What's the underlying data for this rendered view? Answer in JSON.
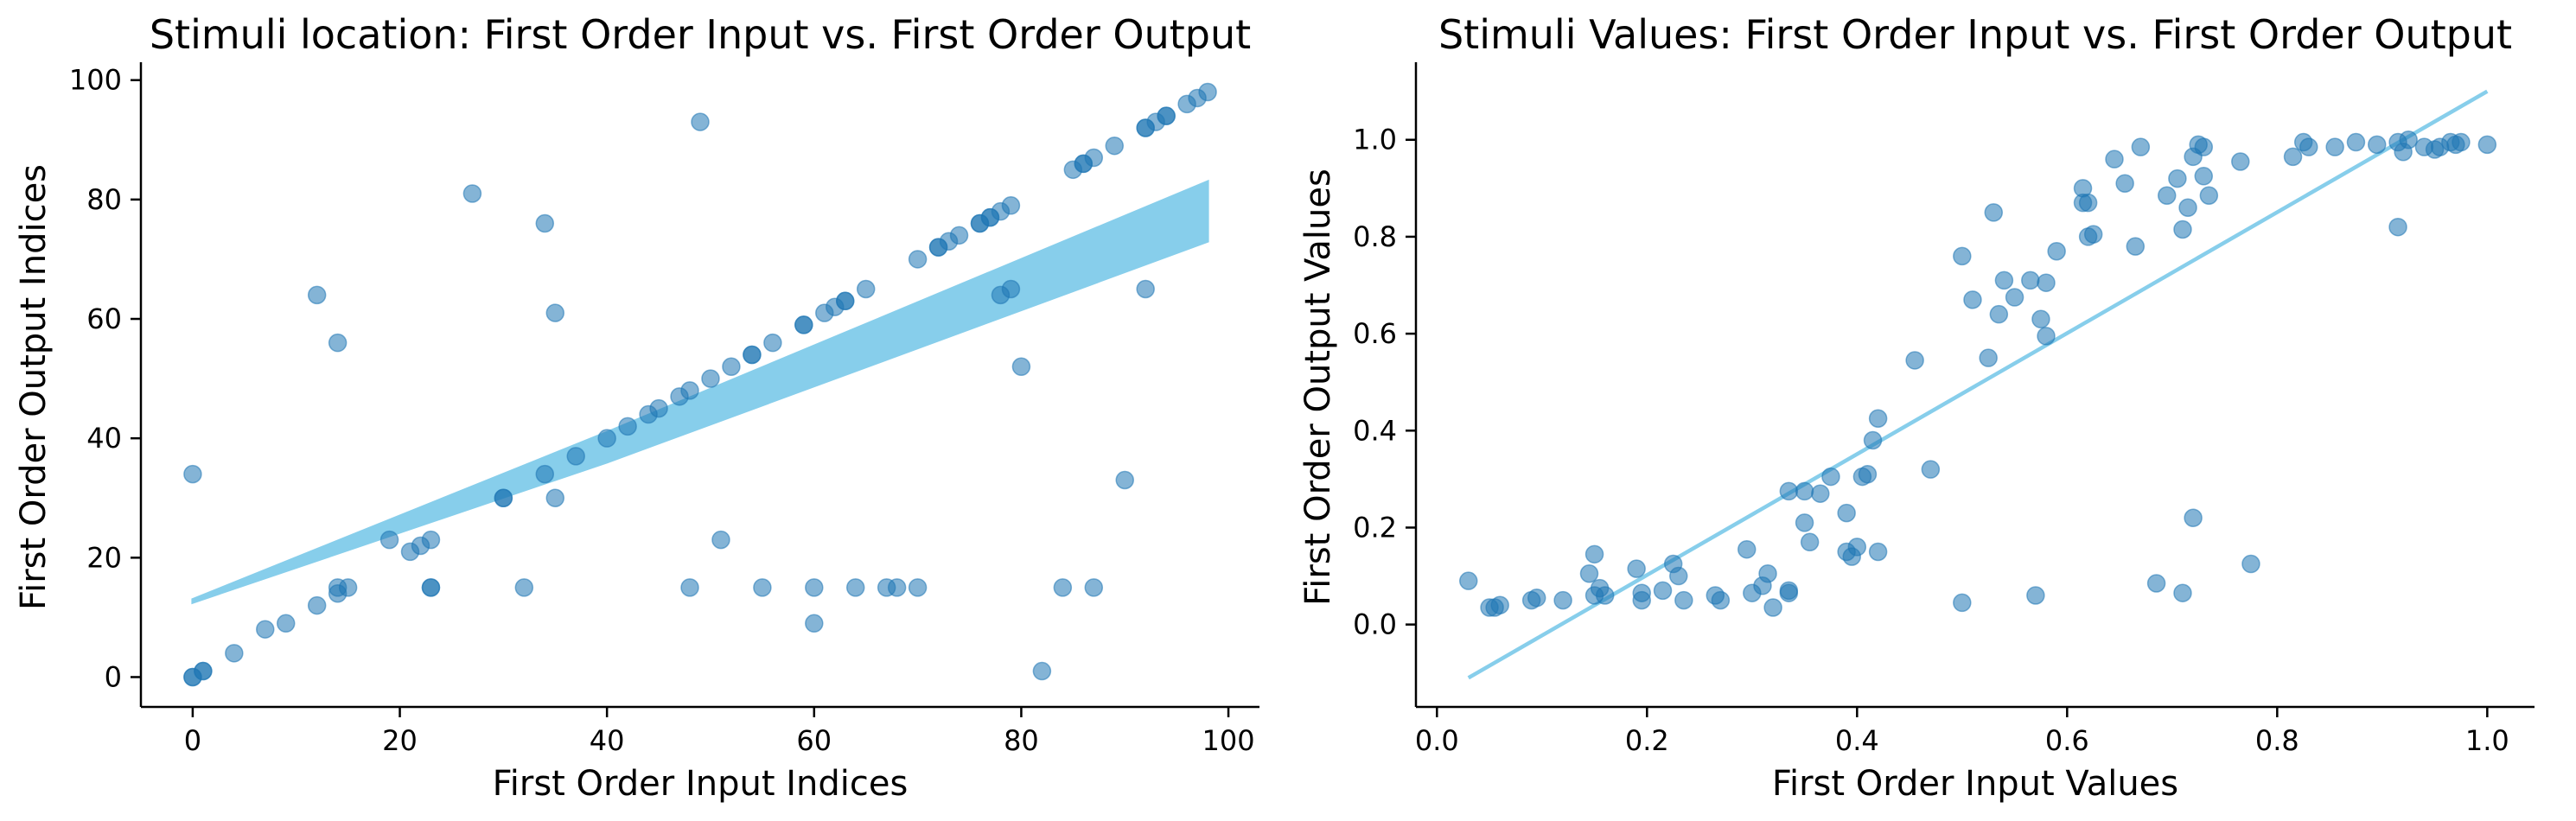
{
  "chart_data": [
    {
      "type": "scatter",
      "title": "Stimuli location: First Order Input vs. First Order Output",
      "xlabel": "First Order Input Indices",
      "ylabel": "First Order Output Indices",
      "xlim": [
        -5,
        103
      ],
      "ylim": [
        -5,
        103
      ],
      "xticks": [
        0,
        20,
        40,
        60,
        80,
        100
      ],
      "yticks": [
        0,
        20,
        40,
        60,
        80,
        100
      ],
      "grid": false,
      "point_color": "#1f77b4",
      "fit_color": "#87ceeb",
      "points": [
        [
          0,
          0
        ],
        [
          0,
          0
        ],
        [
          1,
          1
        ],
        [
          1,
          1
        ],
        [
          0,
          34
        ],
        [
          4,
          4
        ],
        [
          7,
          8
        ],
        [
          9,
          9
        ],
        [
          12,
          12
        ],
        [
          14,
          14
        ],
        [
          14,
          15
        ],
        [
          15,
          15
        ],
        [
          12,
          64
        ],
        [
          14,
          56
        ],
        [
          19,
          23
        ],
        [
          21,
          21
        ],
        [
          22,
          22
        ],
        [
          23,
          23
        ],
        [
          23,
          15
        ],
        [
          23,
          15
        ],
        [
          27,
          81
        ],
        [
          30,
          30
        ],
        [
          30,
          30
        ],
        [
          32,
          15
        ],
        [
          34,
          76
        ],
        [
          35,
          61
        ],
        [
          35,
          30
        ],
        [
          34,
          34
        ],
        [
          37,
          37
        ],
        [
          40,
          40
        ],
        [
          42,
          42
        ],
        [
          44,
          44
        ],
        [
          45,
          45
        ],
        [
          47,
          47
        ],
        [
          48,
          48
        ],
        [
          48,
          15
        ],
        [
          49,
          93
        ],
        [
          50,
          50
        ],
        [
          51,
          23
        ],
        [
          52,
          52
        ],
        [
          54,
          54
        ],
        [
          54,
          54
        ],
        [
          55,
          15
        ],
        [
          56,
          56
        ],
        [
          59,
          59
        ],
        [
          59,
          59
        ],
        [
          60,
          15
        ],
        [
          60,
          9
        ],
        [
          61,
          61
        ],
        [
          62,
          62
        ],
        [
          63,
          63
        ],
        [
          63,
          63
        ],
        [
          64,
          15
        ],
        [
          65,
          65
        ],
        [
          67,
          15
        ],
        [
          68,
          15
        ],
        [
          70,
          70
        ],
        [
          70,
          15
        ],
        [
          72,
          72
        ],
        [
          72,
          72
        ],
        [
          73,
          73
        ],
        [
          74,
          74
        ],
        [
          76,
          76
        ],
        [
          76,
          76
        ],
        [
          77,
          77
        ],
        [
          77,
          77
        ],
        [
          78,
          78
        ],
        [
          78,
          64
        ],
        [
          79,
          79
        ],
        [
          79,
          65
        ],
        [
          80,
          52
        ],
        [
          82,
          1
        ],
        [
          84,
          15
        ],
        [
          85,
          85
        ],
        [
          86,
          86
        ],
        [
          86,
          86
        ],
        [
          87,
          15
        ],
        [
          87,
          87
        ],
        [
          89,
          89
        ],
        [
          90,
          33
        ],
        [
          92,
          92
        ],
        [
          92,
          92
        ],
        [
          92,
          65
        ],
        [
          93,
          93
        ],
        [
          94,
          94
        ],
        [
          94,
          94
        ],
        [
          96,
          96
        ],
        [
          97,
          97
        ],
        [
          98,
          98
        ]
      ],
      "fit_band": [
        [
          0,
          12.5,
          13
        ],
        [
          40,
          36,
          41
        ],
        [
          98,
          73,
          83
        ]
      ]
    },
    {
      "type": "scatter",
      "title": "Stimuli Values: First Order Input vs. First Order Output",
      "xlabel": "First Order Input Values",
      "ylabel": "First Order Output Values",
      "xlim": [
        -0.02,
        1.045
      ],
      "ylim": [
        -0.17,
        1.16
      ],
      "xticks": [
        0.0,
        0.2,
        0.4,
        0.6,
        0.8,
        1.0
      ],
      "xtick_labels": [
        "0.0",
        "0.2",
        "0.4",
        "0.6",
        "0.8",
        "1.0"
      ],
      "yticks": [
        0.0,
        0.2,
        0.4,
        0.6,
        0.8,
        1.0
      ],
      "ytick_labels": [
        "0.0",
        "0.2",
        "0.4",
        "0.6",
        "0.8",
        "1.0"
      ],
      "grid": false,
      "point_color": "#1f77b4",
      "fit_color": "#87ceeb",
      "fit_line": [
        [
          0.03,
          -0.11
        ],
        [
          1.0,
          1.1
        ]
      ],
      "points": [
        [
          0.03,
          0.09
        ],
        [
          0.05,
          0.035
        ],
        [
          0.055,
          0.035
        ],
        [
          0.06,
          0.04
        ],
        [
          0.09,
          0.05
        ],
        [
          0.095,
          0.055
        ],
        [
          0.12,
          0.05
        ],
        [
          0.145,
          0.105
        ],
        [
          0.15,
          0.06
        ],
        [
          0.15,
          0.145
        ],
        [
          0.155,
          0.075
        ],
        [
          0.16,
          0.06
        ],
        [
          0.19,
          0.115
        ],
        [
          0.195,
          0.05
        ],
        [
          0.195,
          0.065
        ],
        [
          0.215,
          0.07
        ],
        [
          0.225,
          0.125
        ],
        [
          0.23,
          0.1
        ],
        [
          0.235,
          0.05
        ],
        [
          0.265,
          0.06
        ],
        [
          0.27,
          0.05
        ],
        [
          0.295,
          0.155
        ],
        [
          0.3,
          0.065
        ],
        [
          0.31,
          0.08
        ],
        [
          0.315,
          0.105
        ],
        [
          0.32,
          0.035
        ],
        [
          0.335,
          0.065
        ],
        [
          0.335,
          0.07
        ],
        [
          0.335,
          0.275
        ],
        [
          0.35,
          0.275
        ],
        [
          0.35,
          0.21
        ],
        [
          0.355,
          0.17
        ],
        [
          0.365,
          0.27
        ],
        [
          0.375,
          0.305
        ],
        [
          0.39,
          0.23
        ],
        [
          0.39,
          0.15
        ],
        [
          0.395,
          0.14
        ],
        [
          0.4,
          0.16
        ],
        [
          0.405,
          0.305
        ],
        [
          0.41,
          0.31
        ],
        [
          0.415,
          0.38
        ],
        [
          0.42,
          0.425
        ],
        [
          0.42,
          0.15
        ],
        [
          0.455,
          0.545
        ],
        [
          0.47,
          0.32
        ],
        [
          0.5,
          0.76
        ],
        [
          0.5,
          0.045
        ],
        [
          0.51,
          0.67
        ],
        [
          0.525,
          0.55
        ],
        [
          0.53,
          0.85
        ],
        [
          0.535,
          0.64
        ],
        [
          0.54,
          0.71
        ],
        [
          0.55,
          0.675
        ],
        [
          0.565,
          0.71
        ],
        [
          0.57,
          0.06
        ],
        [
          0.575,
          0.63
        ],
        [
          0.58,
          0.705
        ],
        [
          0.58,
          0.595
        ],
        [
          0.59,
          0.77
        ],
        [
          0.615,
          0.9
        ],
        [
          0.615,
          0.87
        ],
        [
          0.62,
          0.8
        ],
        [
          0.62,
          0.87
        ],
        [
          0.625,
          0.805
        ],
        [
          0.645,
          0.96
        ],
        [
          0.655,
          0.91
        ],
        [
          0.665,
          0.78
        ],
        [
          0.67,
          0.985
        ],
        [
          0.685,
          0.085
        ],
        [
          0.695,
          0.885
        ],
        [
          0.705,
          0.92
        ],
        [
          0.71,
          0.815
        ],
        [
          0.71,
          0.065
        ],
        [
          0.715,
          0.86
        ],
        [
          0.72,
          0.965
        ],
        [
          0.72,
          0.22
        ],
        [
          0.725,
          0.99
        ],
        [
          0.73,
          0.925
        ],
        [
          0.73,
          0.985
        ],
        [
          0.735,
          0.885
        ],
        [
          0.765,
          0.955
        ],
        [
          0.775,
          0.125
        ],
        [
          0.815,
          0.965
        ],
        [
          0.825,
          0.995
        ],
        [
          0.83,
          0.985
        ],
        [
          0.855,
          0.985
        ],
        [
          0.875,
          0.995
        ],
        [
          0.895,
          0.99
        ],
        [
          0.915,
          0.995
        ],
        [
          0.915,
          0.82
        ],
        [
          0.92,
          0.975
        ],
        [
          0.925,
          1.0
        ],
        [
          0.94,
          0.985
        ],
        [
          0.95,
          0.98
        ],
        [
          0.955,
          0.985
        ],
        [
          0.965,
          0.995
        ],
        [
          0.97,
          0.99
        ],
        [
          0.975,
          0.995
        ],
        [
          1.0,
          0.99
        ]
      ]
    }
  ]
}
